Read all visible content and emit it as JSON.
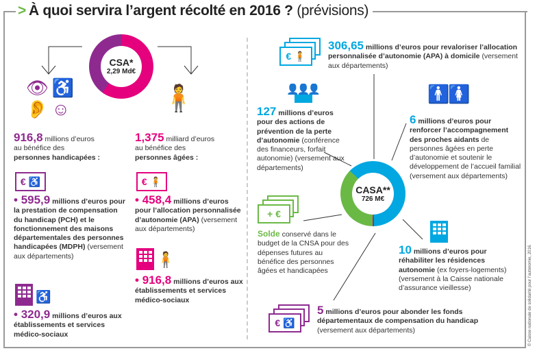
{
  "title": {
    "marker": ">",
    "main": "À quoi servira l’argent récolté en 2016 ?",
    "sub": "(prévisions)"
  },
  "csa": {
    "label": "CSA*",
    "amount": "2,29 Md€",
    "segments": [
      {
        "name": "personnes âgées",
        "value": 1375,
        "color": "#e5007d"
      },
      {
        "name": "personnes handicapées",
        "value": 916.8,
        "color": "#8e2a8f"
      }
    ]
  },
  "handicap": {
    "amount": "916,8",
    "unit": "millions d’euros",
    "line2": "au bénéfice des",
    "line3": "personnes handicapées :",
    "items": [
      {
        "amount": "595,9",
        "unit": "millions d’euros",
        "text_bold": "pour la prestation de compensation du handicap (PCH) et le fonctionnement des maisons départementales des personnes handicapées (MDPH)",
        "text": "(versement aux départements)"
      },
      {
        "amount": "320,9",
        "unit": "millions d’euros",
        "text_bold": "aux établissements et services médico-sociaux",
        "text": ""
      }
    ]
  },
  "ages": {
    "amount": "1,375",
    "unit": "milliard d’euros",
    "line2": "au bénéfice des",
    "line3": "personnes âgées :",
    "items": [
      {
        "amount": "458,4",
        "unit": "millions d’euros",
        "text_bold": "pour l’allocation personnalisée d’autonomie (APA)",
        "text": "(versement aux départements)"
      },
      {
        "amount": "916,8",
        "unit": "millions d’euros",
        "text_bold": "aux établissements et services médico-sociaux",
        "text": ""
      }
    ]
  },
  "casa": {
    "label": "CASA**",
    "amount": "726 M€",
    "segments": [
      {
        "name": "blue",
        "value": 449.65,
        "color": "#00a7e1"
      },
      {
        "name": "handicap",
        "value": 5,
        "color": "#8e2a8f"
      },
      {
        "name": "solde",
        "value": 271.35,
        "color": "#6ab945"
      }
    ]
  },
  "casa_items": {
    "apa": {
      "amount": "306,65",
      "bold": "millions d’euros pour revaloriser l’allocation personnalisée d’autonomie (APA) à domicile",
      "text": "(versement aux départements)"
    },
    "prevention": {
      "amount": "127",
      "bold": "millions d’euros pour des actions de prévention de la perte d’autonomie",
      "text": "(conférence des financeurs, forfait autonomie) (versement aux départements)"
    },
    "aidants": {
      "amount": "6",
      "bold": "millions d’euros pour renforcer l’accompagnement des proches aidants",
      "text": "de personnes âgées en perte d’autonomie et soutenir le développement de l’accueil familial (versement aux départements)"
    },
    "solde": {
      "amount": "Solde",
      "text": "conservé dans le budget de la CNSA pour des dépenses futures au bénéfice des personnes âgées et handicapées"
    },
    "residences": {
      "amount": "10",
      "bold": "millions d’euros pour réhabiliter les résidences autonomie",
      "text": "(ex foyers-logements) (versement à la Caisse nationale d’assurance vieillesse)"
    },
    "fonds": {
      "amount": "5",
      "bold": "millions d’euros pour abonder les fonds départementaux de compensation du handicap",
      "text": "(versement aux départements)"
    }
  },
  "icons": {
    "euro": "€",
    "plus": "+",
    "wheelchair": "♿"
  },
  "copyright": "© Caisse nationale de solidarité pour l’autonomie, 2016.",
  "colors": {
    "purple": "#8e2a8f",
    "pink": "#e5007d",
    "blue": "#00a7e1",
    "green": "#6ab945"
  }
}
